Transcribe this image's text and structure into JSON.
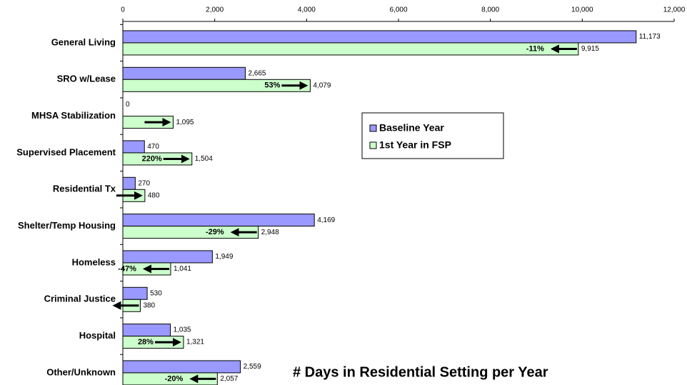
{
  "chart_data": {
    "type": "hbar",
    "title": "# Days in Residential Setting per Year",
    "categories": [
      "General Living",
      "SRO w/Lease",
      "MHSA Stabilization",
      "Supervised Placement",
      "Residential Tx",
      "Shelter/Temp Housing",
      "Homeless",
      "Criminal Justice",
      "Hospital",
      "Other/Unknown"
    ],
    "series": [
      {
        "name": "Baseline Year",
        "color": "#9999ff",
        "values": [
          11173,
          2665,
          0,
          470,
          270,
          4169,
          1949,
          530,
          1035,
          2559
        ],
        "value_labels": [
          "11,173",
          "2,665",
          "0",
          "470",
          "270",
          "4,169",
          "1,949",
          "530",
          "1,035",
          "2,559"
        ]
      },
      {
        "name": "1st Year in FSP",
        "color": "#ccffcc",
        "values": [
          9915,
          4079,
          1095,
          1504,
          480,
          2948,
          1041,
          380,
          1321,
          2057
        ],
        "value_labels": [
          "9,915",
          "4,079",
          "1,095",
          "1,504",
          "480",
          "2,948",
          "1,041",
          "380",
          "1,321",
          "2,057"
        ]
      }
    ],
    "change_labels": [
      "-11%",
      "53%",
      null,
      "220%",
      null,
      "-29%",
      "-47%",
      null,
      "28%",
      "-20%"
    ],
    "xlim": [
      0,
      12000
    ],
    "xticks": [
      0,
      {
        "value": 2000,
        "label": "2,000"
      },
      {
        "value": 4000,
        "label": "4,000"
      },
      {
        "value": 6000,
        "label": "6,000"
      },
      {
        "value": 8000,
        "label": "8,000"
      },
      {
        "value": 10000,
        "label": "10,000"
      },
      {
        "value": 12000,
        "label": "12,000"
      }
    ],
    "grid": false,
    "legend": "center-right"
  }
}
